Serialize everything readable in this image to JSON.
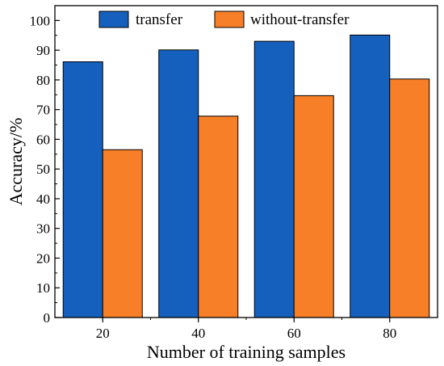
{
  "chart_data": {
    "type": "bar",
    "title": "",
    "xlabel": "Number of training samples",
    "ylabel": "Accuracy/%",
    "categories": [
      "20",
      "40",
      "60",
      "80"
    ],
    "ylim": [
      0,
      105
    ],
    "yticks": [
      "0",
      "10",
      "20",
      "30",
      "40",
      "50",
      "60",
      "70",
      "80",
      "90",
      "100"
    ],
    "grid": false,
    "legend_position": "top",
    "series": [
      {
        "name": "transfer",
        "color": "#1560BD",
        "values": [
          86.1,
          90.1,
          93.0,
          95.1
        ]
      },
      {
        "name": "without-transfer",
        "color": "#F77F28",
        "values": [
          56.5,
          67.8,
          74.7,
          80.3
        ]
      }
    ]
  }
}
